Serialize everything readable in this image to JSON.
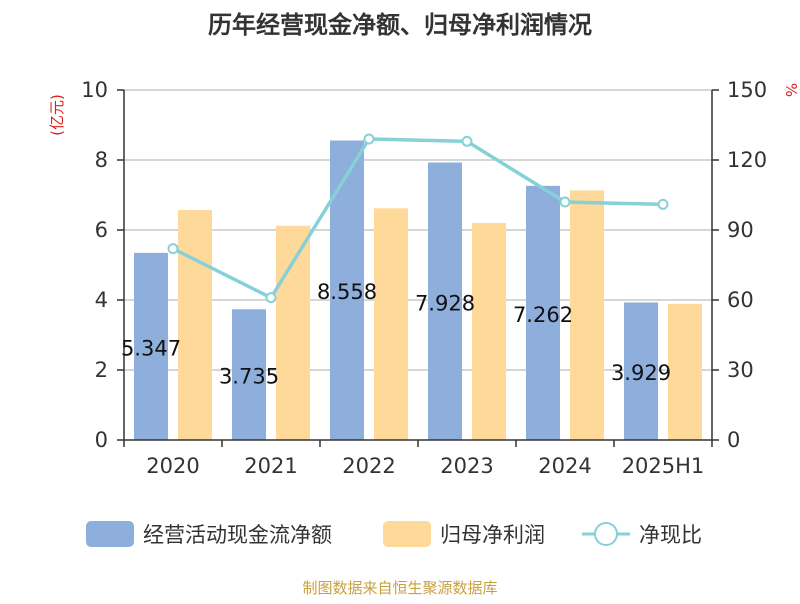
{
  "chart_data": {
    "type": "bar",
    "title": "历年经营现金净额、归母净利润情况",
    "categories": [
      "2020",
      "2021",
      "2022",
      "2023",
      "2024",
      "2025H1"
    ],
    "y_left": {
      "label": "(亿元)",
      "ylim": [
        0,
        10
      ],
      "ticks": [
        0,
        2,
        4,
        6,
        8,
        10
      ]
    },
    "y_right": {
      "label": "%",
      "ylim": [
        0,
        150
      ],
      "ticks": [
        0,
        30,
        60,
        90,
        120,
        150
      ]
    },
    "series": [
      {
        "name": "经营活动现金流净额",
        "kind": "bar",
        "axis": "left",
        "color": "#8eaedb",
        "values": [
          5.347,
          3.735,
          8.558,
          7.928,
          7.262,
          3.929
        ],
        "labels": [
          "5.347",
          "3.735",
          "8.558",
          "7.928",
          "7.262",
          "3.929"
        ]
      },
      {
        "name": "归母净利润",
        "kind": "bar",
        "axis": "left",
        "color": "#ffd999",
        "values": [
          6.57,
          6.12,
          6.62,
          6.2,
          7.13,
          3.89
        ]
      },
      {
        "name": "净现比",
        "kind": "line",
        "axis": "right",
        "color": "#86d1d8",
        "values": [
          82,
          61,
          129,
          128,
          102,
          101
        ]
      }
    ],
    "grid": true,
    "legend": "bottom",
    "axis_label_color": "#e02020"
  },
  "source_note": "制图数据来自恒生聚源数据库",
  "source_color": "#c8a040"
}
